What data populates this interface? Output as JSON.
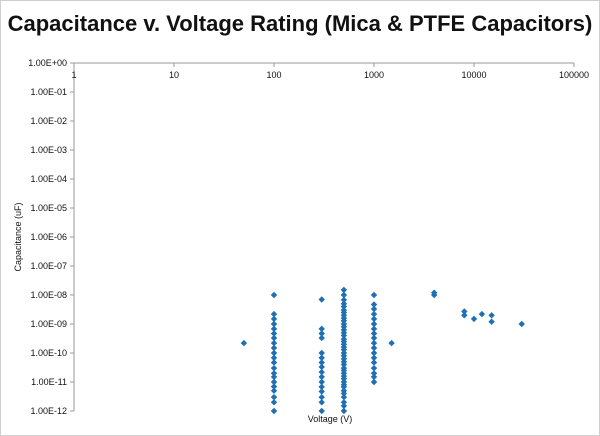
{
  "chart_data": {
    "type": "scatter",
    "title": "Capacitance v. Voltage Rating (Mica & PTFE Capacitors)",
    "xlabel": "Voltage (V)",
    "ylabel": "Capacitance (uF)",
    "x_scale": "log",
    "y_scale": "log",
    "xlim": [
      1,
      100000
    ],
    "ylim": [
      1e-12,
      1
    ],
    "x_ticks": [
      "1",
      "10",
      "100",
      "1000",
      "10000",
      "100000"
    ],
    "y_ticks": [
      "1.00E+00",
      "1.00E-01",
      "1.00E-02",
      "1.00E-03",
      "1.00E-04",
      "1.00E-05",
      "1.00E-06",
      "1.00E-07",
      "1.00E-08",
      "1.00E-09",
      "1.00E-10",
      "1.00E-11",
      "1.00E-12"
    ],
    "grid": false,
    "legend": "none",
    "marker_color": "#1f6fb5",
    "marker": "diamond",
    "series": [
      {
        "points": [
          [
            50,
            2.2e-10
          ],
          [
            100,
            1e-12
          ],
          [
            100,
            2e-12
          ],
          [
            100,
            3e-12
          ],
          [
            100,
            5e-12
          ],
          [
            100,
            7e-12
          ],
          [
            100,
            1e-11
          ],
          [
            100,
            1.5e-11
          ],
          [
            100,
            2e-11
          ],
          [
            100,
            3e-11
          ],
          [
            100,
            4.7e-11
          ],
          [
            100,
            6.8e-11
          ],
          [
            100,
            1e-10
          ],
          [
            100,
            1.5e-10
          ],
          [
            100,
            2.2e-10
          ],
          [
            100,
            3.3e-10
          ],
          [
            100,
            4.7e-10
          ],
          [
            100,
            6.8e-10
          ],
          [
            100,
            1e-09
          ],
          [
            100,
            1.5e-09
          ],
          [
            100,
            2.2e-09
          ],
          [
            100,
            1e-08
          ],
          [
            300,
            1e-12
          ],
          [
            300,
            2e-12
          ],
          [
            300,
            3e-12
          ],
          [
            300,
            4.7e-12
          ],
          [
            300,
            6.8e-12
          ],
          [
            300,
            1e-11
          ],
          [
            300,
            1.5e-11
          ],
          [
            300,
            2.2e-11
          ],
          [
            300,
            3.3e-11
          ],
          [
            300,
            4.7e-11
          ],
          [
            300,
            6.8e-11
          ],
          [
            300,
            1e-10
          ],
          [
            300,
            3.3e-10
          ],
          [
            300,
            4.7e-10
          ],
          [
            300,
            6.8e-10
          ],
          [
            300,
            7e-09
          ],
          [
            500,
            1e-12
          ],
          [
            500,
            1.5e-12
          ],
          [
            500,
            2e-12
          ],
          [
            500,
            3e-12
          ],
          [
            500,
            4e-12
          ],
          [
            500,
            5e-12
          ],
          [
            500,
            6.8e-12
          ],
          [
            500,
            8e-12
          ],
          [
            500,
            1e-11
          ],
          [
            500,
            1.3e-11
          ],
          [
            500,
            1.6e-11
          ],
          [
            500,
            2e-11
          ],
          [
            500,
            2.5e-11
          ],
          [
            500,
            3e-11
          ],
          [
            500,
            4e-11
          ],
          [
            500,
            5e-11
          ],
          [
            500,
            6.3e-11
          ],
          [
            500,
            8e-11
          ],
          [
            500,
            1e-10
          ],
          [
            500,
            1.3e-10
          ],
          [
            500,
            1.6e-10
          ],
          [
            500,
            2e-10
          ],
          [
            500,
            2.5e-10
          ],
          [
            500,
            3e-10
          ],
          [
            500,
            4e-10
          ],
          [
            500,
            5e-10
          ],
          [
            500,
            6.3e-10
          ],
          [
            500,
            8e-10
          ],
          [
            500,
            1e-09
          ],
          [
            500,
            1.3e-09
          ],
          [
            500,
            1.6e-09
          ],
          [
            500,
            2e-09
          ],
          [
            500,
            2.5e-09
          ],
          [
            500,
            3e-09
          ],
          [
            500,
            4e-09
          ],
          [
            500,
            5e-09
          ],
          [
            500,
            6.8e-09
          ],
          [
            500,
            1e-08
          ],
          [
            500,
            1.5e-08
          ],
          [
            1000,
            1e-11
          ],
          [
            1000,
            1.5e-11
          ],
          [
            1000,
            2e-11
          ],
          [
            1000,
            3e-11
          ],
          [
            1000,
            4.7e-11
          ],
          [
            1000,
            6.8e-11
          ],
          [
            1000,
            1e-10
          ],
          [
            1000,
            1.5e-10
          ],
          [
            1000,
            2.2e-10
          ],
          [
            1000,
            3.3e-10
          ],
          [
            1000,
            4.7e-10
          ],
          [
            1000,
            6.8e-10
          ],
          [
            1000,
            1e-09
          ],
          [
            1000,
            1.5e-09
          ],
          [
            1000,
            2.2e-09
          ],
          [
            1000,
            3.3e-09
          ],
          [
            1000,
            4.7e-09
          ],
          [
            1000,
            1e-08
          ],
          [
            1500,
            2.2e-10
          ],
          [
            4000,
            1e-08
          ],
          [
            4000,
            1.2e-08
          ],
          [
            8000,
            2e-09
          ],
          [
            8000,
            2.7e-09
          ],
          [
            10000,
            1.5e-09
          ],
          [
            12000,
            2.2e-09
          ],
          [
            15000,
            1.2e-09
          ],
          [
            15000,
            2e-09
          ],
          [
            30000,
            1e-09
          ]
        ]
      }
    ]
  }
}
